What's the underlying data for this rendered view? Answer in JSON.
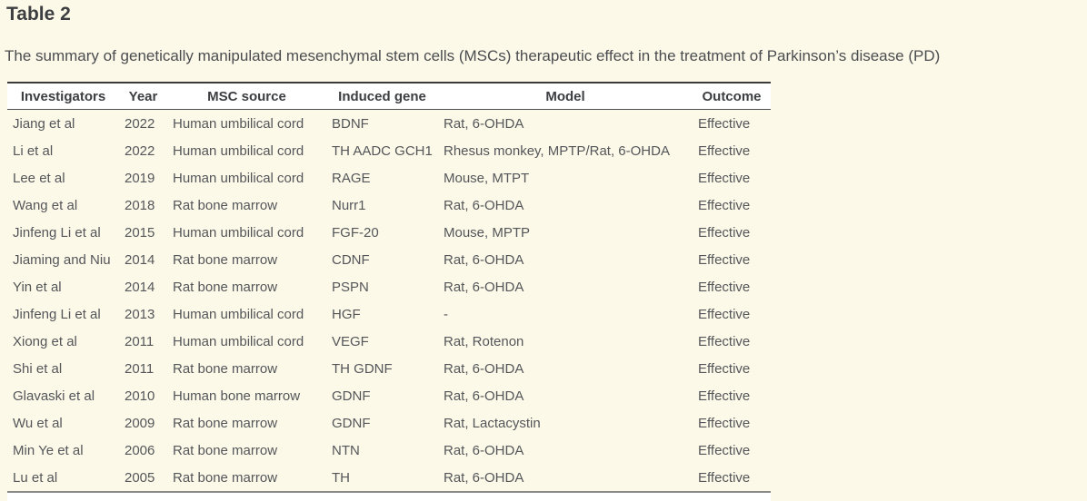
{
  "page": {
    "title": "Table 2",
    "caption": "The summary of genetically manipulated mesenchymal stem cells (MSCs) therapeutic effect in the treatment of Parkinson’s disease (PD)"
  },
  "table": {
    "columns": [
      "Investigators",
      "Year",
      "MSC source",
      "Induced gene",
      "Model",
      "Outcome"
    ],
    "rows": [
      [
        "Jiang et al",
        "2022",
        "Human umbilical cord",
        "BDNF",
        "Rat, 6-OHDA",
        "Effective"
      ],
      [
        "Li et al",
        "2022",
        "Human umbilical cord",
        "TH AADC GCH1",
        "Rhesus monkey, MPTP/Rat, 6-OHDA",
        "Effective"
      ],
      [
        "Lee et al",
        "2019",
        "Human umbilical cord",
        "RAGE",
        "Mouse, MTPT",
        "Effective"
      ],
      [
        "Wang et al",
        "2018",
        "Rat bone marrow",
        "Nurr1",
        "Rat, 6-OHDA",
        "Effective"
      ],
      [
        "Jinfeng Li et al",
        "2015",
        "Human umbilical cord",
        "FGF-20",
        "Mouse, MPTP",
        "Effective"
      ],
      [
        "Jiaming and Niu",
        "2014",
        "Rat bone marrow",
        "CDNF",
        "Rat, 6-OHDA",
        "Effective"
      ],
      [
        "Yin et al",
        "2014",
        "Rat bone marrow",
        "PSPN",
        "Rat, 6-OHDA",
        "Effective"
      ],
      [
        "Jinfeng Li et al",
        "2013",
        "Human umbilical cord",
        "HGF",
        "-",
        "Effective"
      ],
      [
        "Xiong et al",
        "2011",
        "Human umbilical cord",
        "VEGF",
        "Rat, Rotenon",
        "Effective"
      ],
      [
        "Shi et al",
        "2011",
        "Rat bone marrow",
        "TH GDNF",
        "Rat, 6-OHDA",
        "Effective"
      ],
      [
        "Glavaski et al",
        "2010",
        "Human bone marrow",
        "GDNF",
        "Rat, 6-OHDA",
        "Effective"
      ],
      [
        "Wu et al",
        "2009",
        "Rat bone marrow",
        "GDNF",
        "Rat, Lactacystin",
        "Effective"
      ],
      [
        "Min Ye et al",
        "2006",
        "Rat bone marrow",
        "NTN",
        "Rat, 6-OHDA",
        "Effective"
      ],
      [
        "Lu et al",
        "2005",
        "Rat bone marrow",
        "TH",
        "Rat, 6-OHDA",
        "Effective"
      ]
    ]
  },
  "colors": {
    "page_background": "#fcf9e8",
    "header_row_background": "#ffffff",
    "table_top_border": "#3a3a3a",
    "header_bottom_border": "#4d4d4d",
    "table_bottom_border": "#8a8a8a",
    "title_text": "#3c3e41",
    "body_text": "#54565a"
  }
}
